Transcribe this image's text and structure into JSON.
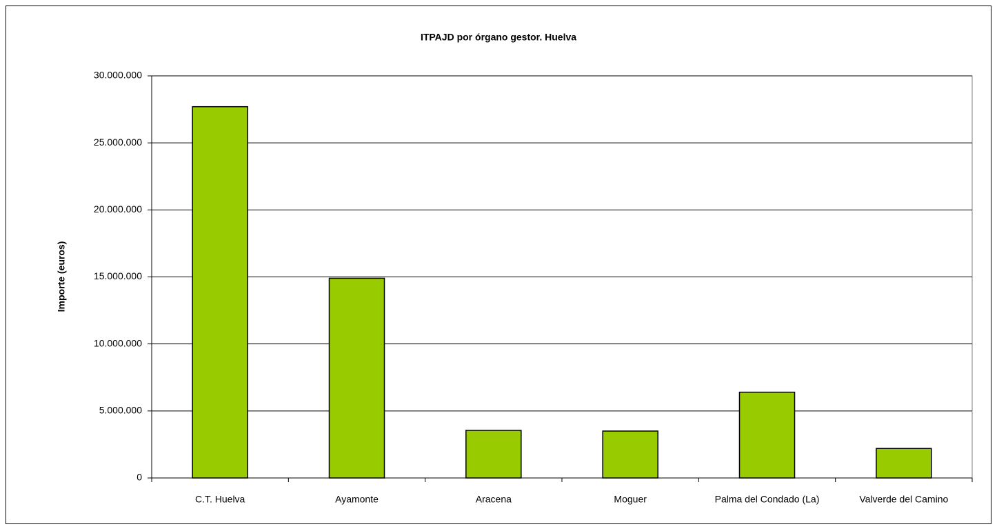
{
  "chart_data": {
    "type": "bar",
    "title": "ITPAJD por órgano gestor. Huelva",
    "y_label": "Importe (euros)",
    "categories": [
      "C.T. Huelva",
      "Ayamonte",
      "Aracena",
      "Moguer",
      "Palma del Condado (La)",
      "Valverde del Camino"
    ],
    "values": [
      27700000,
      14900000,
      3550000,
      3500000,
      6400000,
      2200000
    ],
    "color": "#99cc00",
    "ylim": [
      0,
      30000000
    ],
    "yticks": [
      0,
      {
        "value": 5000000,
        "label": "5.000.000"
      },
      {
        "value": 10000000,
        "label": "10.000.000"
      },
      {
        "value": 15000000,
        "label": "15.000.000"
      },
      {
        "value": 20000000,
        "label": "20.000.000"
      },
      {
        "value": 25000000,
        "label": "25.000.000"
      },
      {
        "value": 30000000,
        "label": "30.000.000"
      }
    ],
    "grid": true
  }
}
